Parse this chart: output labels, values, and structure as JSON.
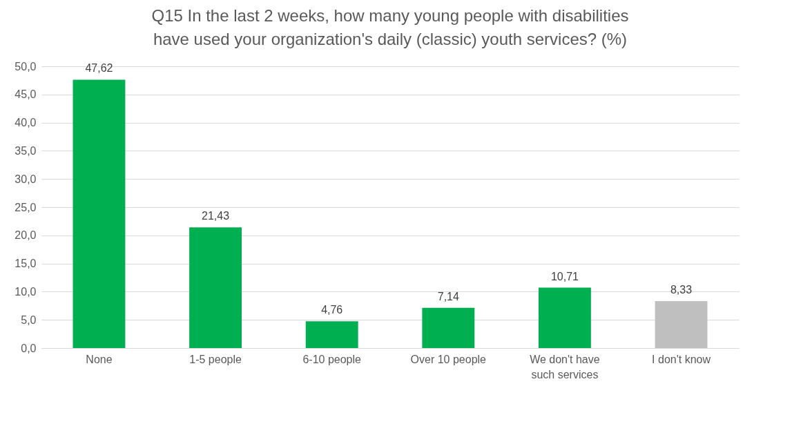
{
  "chart_data": {
    "type": "bar",
    "title": "Q15 In the last 2 weeks, how many young people with disabilities have used your organization's daily (classic) youth services? (%)",
    "categories": [
      "None",
      "1-5 people",
      "6-10 people",
      "Over 10 people",
      "We don't have such services",
      "I don't know"
    ],
    "values": [
      47.62,
      21.43,
      4.76,
      7.14,
      10.71,
      8.33
    ],
    "value_labels": [
      "47,62",
      "21,43",
      "4,76",
      "7,14",
      "10,71",
      "8,33"
    ],
    "colors": [
      "#00b050",
      "#00b050",
      "#00b050",
      "#00b050",
      "#00b050",
      "#bfbfbf"
    ],
    "ylim": [
      0,
      50
    ],
    "yticks": [
      {
        "value": 0,
        "label": "0,0"
      },
      {
        "value": 5,
        "label": "5,0"
      },
      {
        "value": 10,
        "label": "10,0"
      },
      {
        "value": 15,
        "label": "15,0"
      },
      {
        "value": 20,
        "label": "20,0"
      },
      {
        "value": 25,
        "label": "25,0"
      },
      {
        "value": 30,
        "label": "30,0"
      },
      {
        "value": 35,
        "label": "35,0"
      },
      {
        "value": 40,
        "label": "40,0"
      },
      {
        "value": 45,
        "label": "45,0"
      },
      {
        "value": 50,
        "label": "50,0"
      }
    ],
    "grid": "y"
  }
}
